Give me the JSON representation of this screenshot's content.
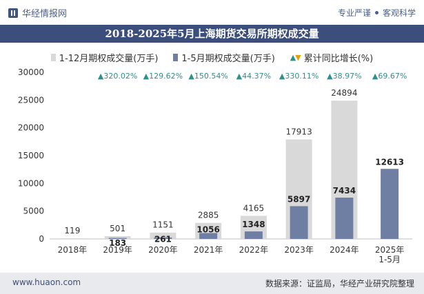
{
  "header": {
    "brand": "华经情报网",
    "slogan_left": "专业严谨",
    "slogan_right": "客观科学"
  },
  "title": "2018-2025年5月上海期货交易所期权成交量",
  "footer": {
    "url": "www.huaon.com",
    "source": "数据来源：证监局，华经产业研究院整理"
  },
  "colors": {
    "annual_bar": "#d9d9d9",
    "ytd_bar": "#6f7fa3",
    "growth_up": "#2f8f8f",
    "title_bg": "#3b4e7c"
  },
  "chart_data": {
    "type": "bar",
    "categories": [
      "2018年",
      "2019年",
      "2020年",
      "2021年",
      "2022年",
      "2023年",
      "2024年",
      "2025年\n1-5月"
    ],
    "series": [
      {
        "name": "1-12月期权成交量(万手)",
        "values": [
          119,
          501,
          1151,
          2885,
          4165,
          17913,
          24894,
          null
        ]
      },
      {
        "name": "1-5月期权成交量(万手)",
        "values": [
          null,
          183,
          261,
          1056,
          1348,
          5897,
          7434,
          12613
        ]
      }
    ],
    "growth": {
      "name": "累计同比增长(%)",
      "labels": [
        "",
        "▲320.02%",
        "▲129.62%",
        "▲150.54%",
        "▲44.37%",
        "▲330.11%",
        "▲38.97%",
        "▲69.67%"
      ]
    },
    "yticks": [
      0,
      5000,
      10000,
      15000,
      20000,
      25000,
      30000
    ],
    "ylim": [
      0,
      30000
    ],
    "legend_position": "top-center",
    "grid": false
  }
}
